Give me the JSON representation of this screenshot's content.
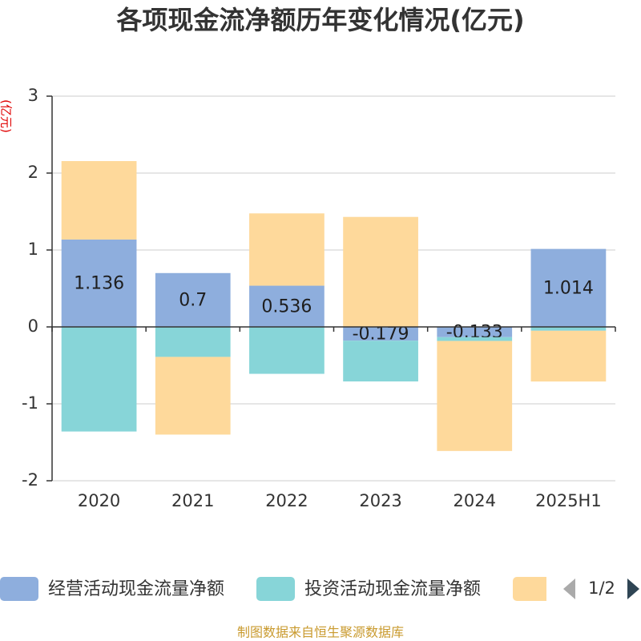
{
  "chart_data": {
    "type": "bar",
    "stacked": true,
    "title": "各项现金流净额历年变化情况(亿元)",
    "ylabel": "(亿元)",
    "categories": [
      "2020",
      "2021",
      "2022",
      "2023",
      "2024",
      "2025H1"
    ],
    "ylim": [
      -2,
      3
    ],
    "yticks": [
      3,
      2,
      1,
      0,
      -1,
      -2
    ],
    "grid": true,
    "legend_position": "bottom",
    "series": [
      {
        "name": "经营活动现金流量净额",
        "color": "#8eaedd",
        "values": [
          1.136,
          0.7,
          0.536,
          -0.179,
          -0.133,
          1.014
        ],
        "show_labels": true
      },
      {
        "name": "投资活动现金流量净额",
        "color": "#87d5d8",
        "values": [
          -1.36,
          -0.39,
          -0.61,
          -0.53,
          -0.05,
          -0.05
        ]
      },
      {
        "color": "#fed99b",
        "values": [
          1.02,
          -1.01,
          0.94,
          1.43,
          -1.43,
          -0.66
        ]
      }
    ]
  },
  "legend": {
    "page": "1/2"
  },
  "footer": "制图数据来自恒生聚源数据库"
}
